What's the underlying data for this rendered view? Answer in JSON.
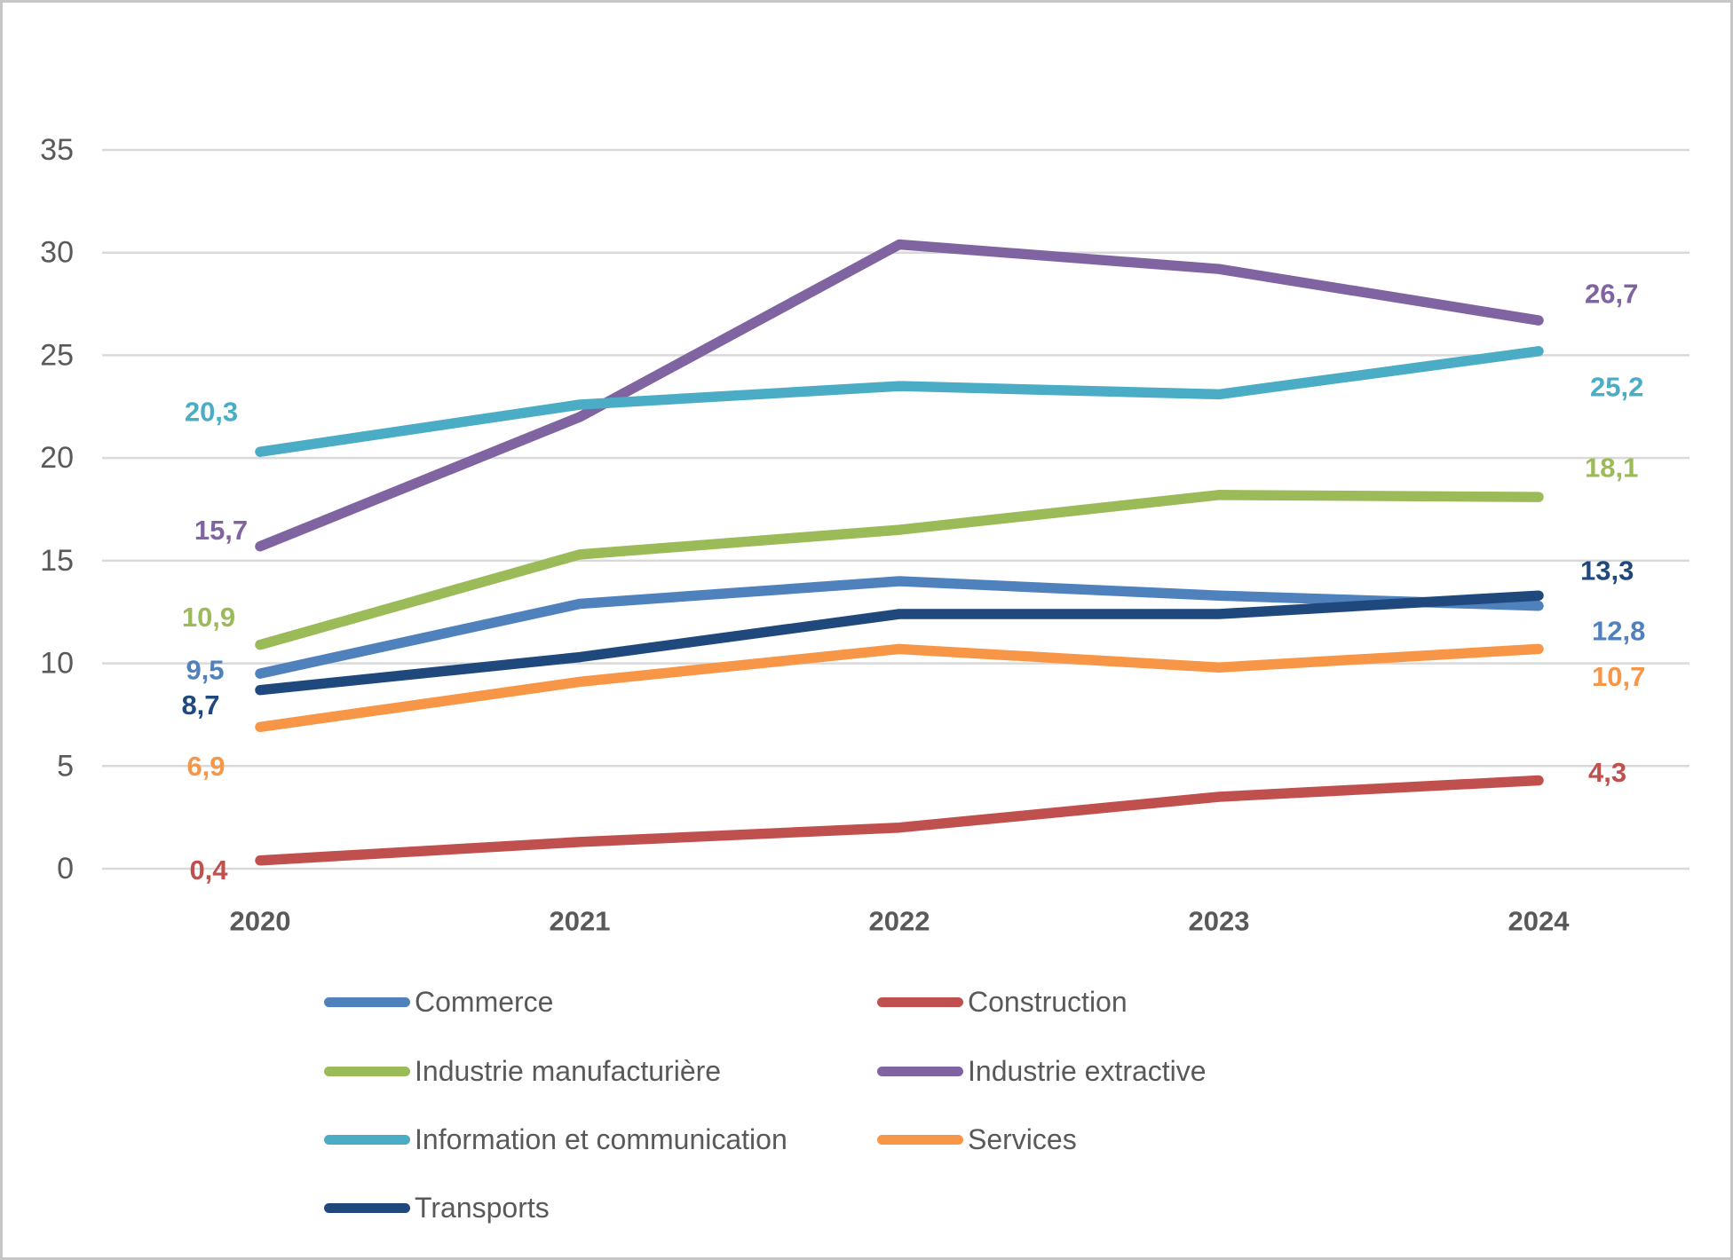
{
  "chart_data": {
    "type": "line",
    "title": "",
    "categories": [
      "2020",
      "2021",
      "2022",
      "2023",
      "2024"
    ],
    "series": [
      {
        "id": "commerce",
        "name": "Commerce",
        "color": "#4F81BD",
        "values": [
          9.5,
          12.9,
          14.0,
          13.3,
          12.8
        ],
        "first_label": "9,5",
        "last_label": "12,8"
      },
      {
        "id": "construction",
        "name": "Construction",
        "color": "#C0504D",
        "values": [
          0.4,
          1.3,
          2.0,
          3.5,
          4.3
        ],
        "first_label": "0,4",
        "last_label": "4,3"
      },
      {
        "id": "industrie-manufacturiere",
        "name": "Industrie manufacturière",
        "color": "#9BBB59",
        "values": [
          10.9,
          15.3,
          16.5,
          18.2,
          18.1
        ],
        "first_label": "10,9",
        "last_label": "18,1"
      },
      {
        "id": "industrie-extractive",
        "name": "Industrie extractive",
        "color": "#8064A2",
        "values": [
          15.7,
          22.0,
          30.4,
          29.2,
          26.7
        ],
        "first_label": "15,7",
        "last_label": "26,7"
      },
      {
        "id": "information-communication",
        "name": "Information et communication",
        "color": "#4BACC6",
        "values": [
          20.3,
          22.6,
          23.5,
          23.1,
          25.2
        ],
        "first_label": "20,3",
        "last_label": "25,2"
      },
      {
        "id": "services",
        "name": "Services",
        "color": "#F79646",
        "values": [
          6.9,
          9.1,
          10.7,
          9.8,
          10.7
        ],
        "first_label": "6,9",
        "last_label": "10,7"
      },
      {
        "id": "transports",
        "name": "Transports",
        "color": "#1F497D",
        "values": [
          8.7,
          10.3,
          12.4,
          12.4,
          13.3
        ],
        "first_label": "8,7",
        "last_label": "13,3"
      }
    ],
    "y_axis": {
      "min": 0,
      "max": 35,
      "step": 5,
      "tick_labels": [
        "0",
        "5",
        "10",
        "15",
        "20",
        "25",
        "30",
        "35"
      ]
    },
    "grid": true,
    "legend_position": "bottom",
    "legend_columns": 2,
    "legend_order": [
      "commerce",
      "construction",
      "industrie-manufacturiere",
      "industrie-extractive",
      "information-communication",
      "services",
      "transports"
    ]
  },
  "style_colors": {
    "axis_text": "#595959",
    "gridline": "#D9D9D9",
    "background": "#FFFFFF",
    "border": "#C6C6C6"
  }
}
